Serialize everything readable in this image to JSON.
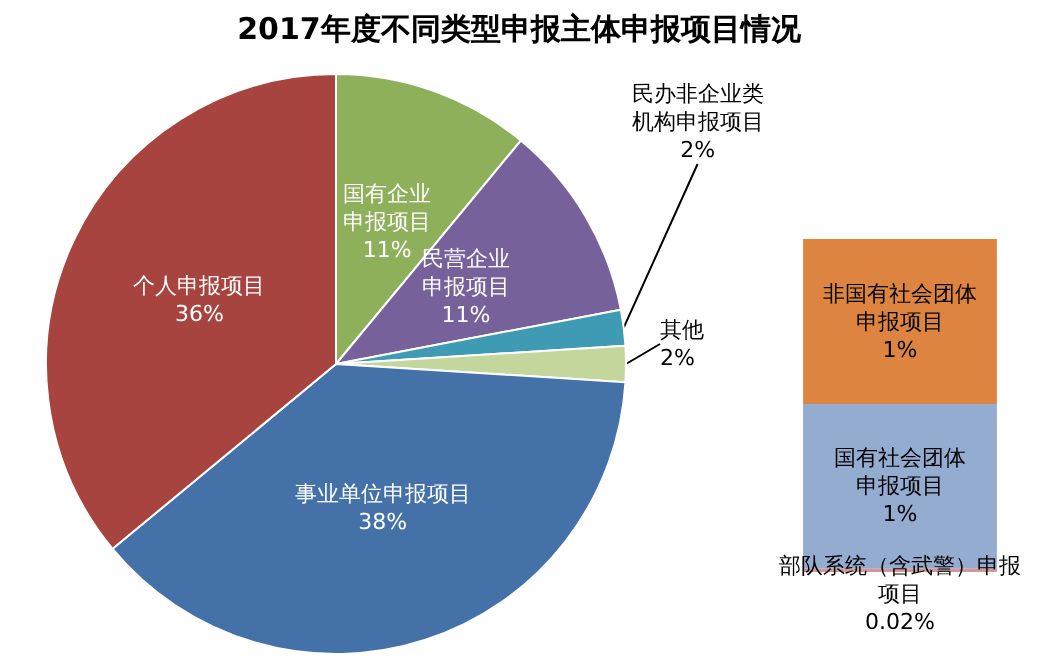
{
  "chart_data": [
    {
      "type": "pie",
      "title": "2017年度不同类型申报主体申报项目情况",
      "categories": [
        "国有企业申报项目",
        "民营企业申报项目",
        "民办非企业类机构申报项目",
        "其他",
        "事业单位申报项目",
        "个人申报项目"
      ],
      "values": [
        11,
        11,
        2,
        2,
        38,
        36
      ],
      "value_labels": [
        "11%",
        "11%",
        "2%",
        "2%",
        "38%",
        "36%"
      ],
      "colors": [
        "#8fb05a",
        "#76619a",
        "#3f9bb3",
        "#c3d69b",
        "#4472a8",
        "#a8443f"
      ],
      "legend": false
    },
    {
      "type": "other",
      "categories": [
        "部队系统（含武警）申报项目",
        "国有社会团体申报项目",
        "非国有社会团体申报项目"
      ],
      "values": [
        0.02,
        1,
        1
      ],
      "value_labels": [
        "0.02%",
        "1%",
        "1%"
      ],
      "colors": [
        "#d99594",
        "#95acd1",
        "#dd8540"
      ]
    }
  ]
}
